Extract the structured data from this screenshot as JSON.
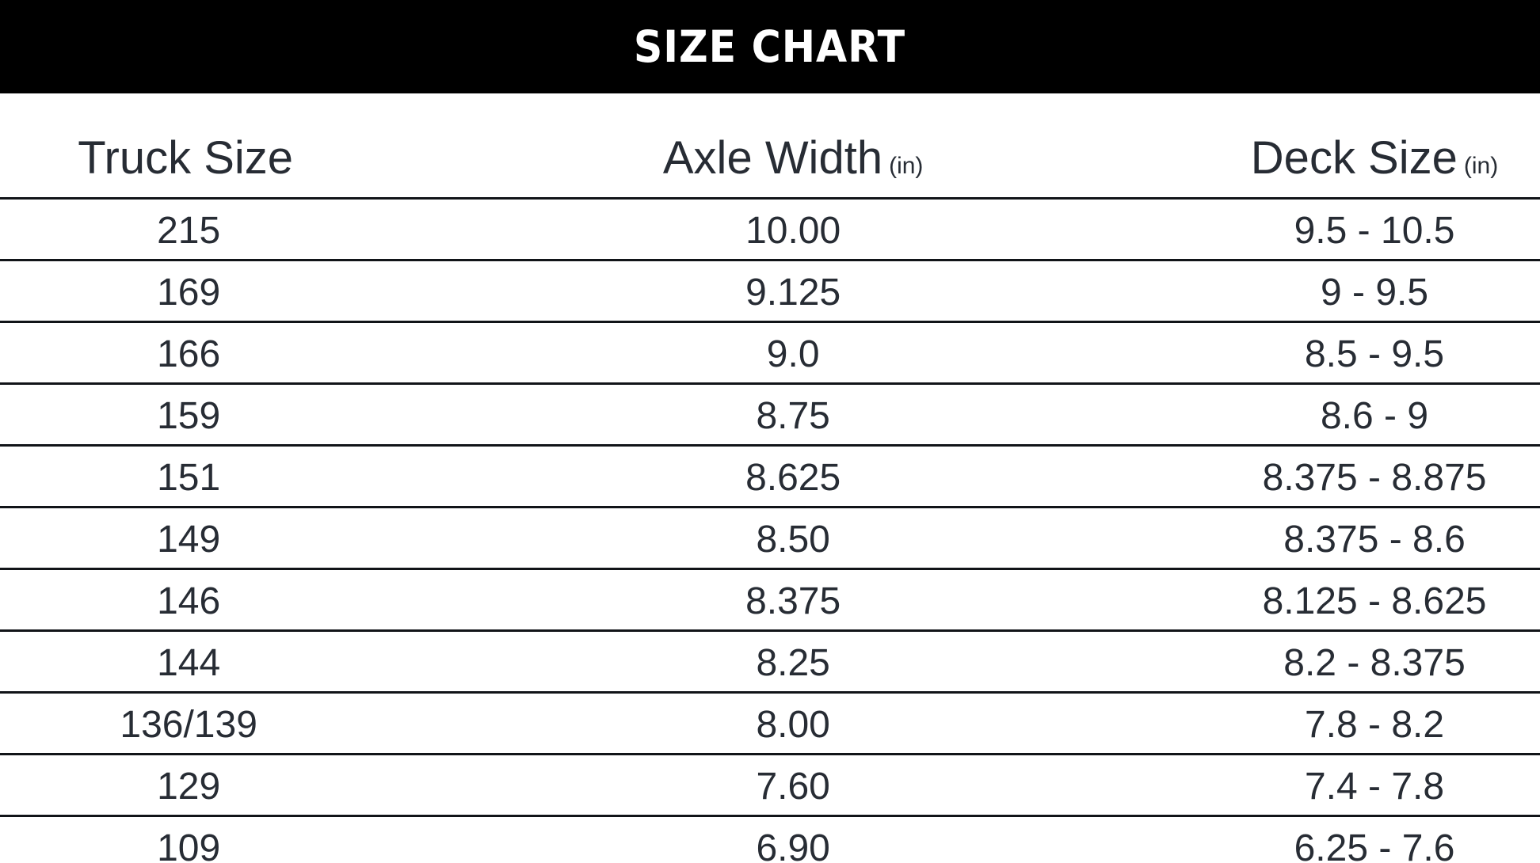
{
  "banner": {
    "title": "SIZE CHART",
    "background": "#000000",
    "text_color": "#ffffff"
  },
  "table": {
    "columns": [
      {
        "label": "Truck Size",
        "unit": ""
      },
      {
        "label": "Axle Width",
        "unit": "(in)"
      },
      {
        "label": "Deck Size",
        "unit": "(in)"
      }
    ],
    "rows": [
      [
        "215",
        "10.00",
        "9.5 - 10.5"
      ],
      [
        "169",
        "9.125",
        "9 - 9.5"
      ],
      [
        "166",
        "9.0",
        "8.5 - 9.5"
      ],
      [
        "159",
        "8.75",
        "8.6 - 9"
      ],
      [
        "151",
        "8.625",
        "8.375 - 8.875"
      ],
      [
        "149",
        "8.50",
        "8.375 - 8.6"
      ],
      [
        "146",
        "8.375",
        "8.125 - 8.625"
      ],
      [
        "144",
        "8.25",
        "8.2 - 8.375"
      ],
      [
        "136/139",
        "8.00",
        "7.8 - 8.2"
      ],
      [
        "129",
        "7.60",
        "7.4 - 7.8"
      ],
      [
        "109",
        "6.90",
        "6.25 - 7.6"
      ]
    ],
    "text_color": "#272c34",
    "line_color": "#111418"
  },
  "chart_data": {
    "type": "table",
    "title": "SIZE CHART",
    "columns": [
      "Truck Size",
      "Axle Width (in)",
      "Deck Size (in)"
    ],
    "rows": [
      [
        "215",
        "10.00",
        "9.5 - 10.5"
      ],
      [
        "169",
        "9.125",
        "9 - 9.5"
      ],
      [
        "166",
        "9.0",
        "8.5 - 9.5"
      ],
      [
        "159",
        "8.75",
        "8.6 - 9"
      ],
      [
        "151",
        "8.625",
        "8.375 - 8.875"
      ],
      [
        "149",
        "8.50",
        "8.375 - 8.6"
      ],
      [
        "146",
        "8.375",
        "8.125 - 8.625"
      ],
      [
        "144",
        "8.25",
        "8.2 - 8.375"
      ],
      [
        "136/139",
        "8.00",
        "7.8 - 8.2"
      ],
      [
        "129",
        "7.60",
        "7.4 - 7.8"
      ],
      [
        "109",
        "6.90",
        "6.25 - 7.6"
      ]
    ],
    "layout": {
      "header_band": "black full-width bar with white title",
      "grid": "horizontal row separator lines only, full width",
      "column_alignment": "center"
    }
  }
}
